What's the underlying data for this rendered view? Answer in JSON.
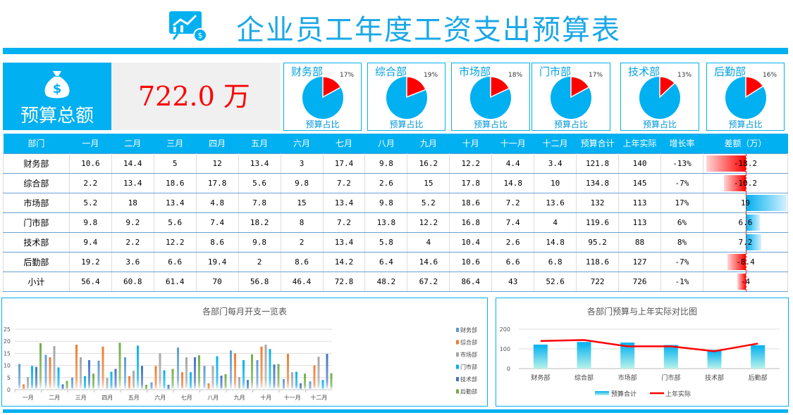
{
  "header": {
    "title": "企业员工年度工资支出预算表",
    "logo_icon": "chart-money-bag-icon"
  },
  "summary": {
    "label": "预算总额",
    "value": "722.0 万",
    "icon": "money-bag-icon"
  },
  "pies": [
    {
      "name": "财务部",
      "pct": "17%",
      "fraction": 0.17
    },
    {
      "name": "综合部",
      "pct": "19%",
      "fraction": 0.19
    },
    {
      "name": "市场部",
      "pct": "18%",
      "fraction": 0.18
    },
    {
      "name": "门市部",
      "pct": "17%",
      "fraction": 0.17
    },
    {
      "name": "技术部",
      "pct": "13%",
      "fraction": 0.13
    },
    {
      "name": "后勤部",
      "pct": "16%",
      "fraction": 0.16
    }
  ],
  "pie_sub": "预算占比",
  "colors": {
    "accent": "#00b0f0",
    "negative": "#ff0000",
    "budget_total": "#ff0000"
  },
  "table": {
    "headers": [
      "部门",
      "一月",
      "二月",
      "三月",
      "四月",
      "五月",
      "六月",
      "七月",
      "八月",
      "九月",
      "十月",
      "十一月",
      "十二月",
      "预算合计",
      "上年实际",
      "增长率",
      "差额（万）"
    ],
    "rows": [
      [
        "财务部",
        "10.6",
        "14.4",
        "5",
        "12",
        "13.4",
        "3",
        "17.4",
        "9.8",
        "16.2",
        "12.2",
        "4.4",
        "3.4",
        "121.8",
        "140",
        "-13%",
        "-18.2"
      ],
      [
        "综合部",
        "2.2",
        "13.4",
        "18.6",
        "17.8",
        "5.6",
        "9.8",
        "7.2",
        "2.6",
        "15",
        "17.8",
        "14.8",
        "10",
        "134.8",
        "145",
        "-7%",
        "-10.2"
      ],
      [
        "市场部",
        "5.2",
        "18",
        "13.4",
        "4.8",
        "7.8",
        "15",
        "13.4",
        "9.8",
        "5.2",
        "18.6",
        "7.2",
        "13.6",
        "132",
        "113",
        "17%",
        "19"
      ],
      [
        "门市部",
        "9.8",
        "9.2",
        "5.6",
        "7.4",
        "18.2",
        "8",
        "7.2",
        "13.8",
        "12.2",
        "16.8",
        "7.4",
        "4",
        "119.6",
        "113",
        "6%",
        "6.6"
      ],
      [
        "技术部",
        "9.4",
        "2.2",
        "12.2",
        "8.6",
        "9.8",
        "2",
        "13.4",
        "5.8",
        "4",
        "10.4",
        "2.6",
        "14.8",
        "95.2",
        "88",
        "8%",
        "7.2"
      ],
      [
        "后勤部",
        "19.2",
        "3.6",
        "6.6",
        "19.4",
        "2",
        "8.6",
        "14.2",
        "6.4",
        "14.6",
        "10.6",
        "6.6",
        "6.8",
        "118.6",
        "127",
        "-7%",
        "-8.4"
      ],
      [
        "小计",
        "56.4",
        "60.8",
        "61.4",
        "70",
        "56.8",
        "46.4",
        "72.8",
        "48.2",
        "67.2",
        "86.4",
        "43",
        "52.6",
        "722",
        "726",
        "-1%",
        "-4"
      ]
    ]
  },
  "chart_data": [
    {
      "type": "bar",
      "title": "各部门每月开支一览表",
      "categories": [
        "一月",
        "二月",
        "三月",
        "四月",
        "五月",
        "六月",
        "七月",
        "八月",
        "九月",
        "十月",
        "十一月",
        "十二月"
      ],
      "ylim": [
        0,
        25
      ],
      "yticks": [
        "0",
        "5",
        "10",
        "15",
        "20",
        "25"
      ],
      "grid": true,
      "legend": "right",
      "series": [
        {
          "name": "财务部",
          "color": "#5b9bd5",
          "values": [
            10.6,
            14.4,
            5,
            12,
            13.4,
            3,
            17.4,
            9.8,
            16.2,
            12.2,
            4.4,
            3.4
          ]
        },
        {
          "name": "综合部",
          "color": "#ed7d31",
          "values": [
            2.2,
            13.4,
            18.6,
            17.8,
            5.6,
            9.8,
            7.2,
            2.6,
            15,
            17.8,
            14.8,
            10
          ]
        },
        {
          "name": "市场部",
          "color": "#a5a5a5",
          "values": [
            5.2,
            18,
            13.4,
            4.8,
            7.8,
            15,
            13.4,
            9.8,
            5.2,
            18.6,
            7.2,
            13.6
          ]
        },
        {
          "name": "门市部",
          "color": "#00b0f0",
          "values": [
            9.8,
            9.2,
            5.6,
            7.4,
            18.2,
            8,
            7.2,
            13.8,
            12.2,
            16.8,
            7.4,
            4
          ]
        },
        {
          "name": "技术部",
          "color": "#4472c4",
          "values": [
            9.4,
            2.2,
            12.2,
            8.6,
            9.8,
            2,
            13.4,
            5.8,
            4,
            10.4,
            2.6,
            14.8
          ]
        },
        {
          "name": "后勤部",
          "color": "#70ad47",
          "values": [
            19.2,
            3.6,
            6.6,
            19.4,
            2,
            8.6,
            14.2,
            6.4,
            14.6,
            10.6,
            6.6,
            6.8
          ]
        }
      ]
    },
    {
      "type": "bar+line",
      "title": "各部门预算与上年实际对比图",
      "categories": [
        "财务部",
        "综合部",
        "市场部",
        "门市部",
        "技术部",
        "后勤部"
      ],
      "ylim": [
        0,
        200
      ],
      "yticks": [
        "0",
        "100",
        "200"
      ],
      "grid": true,
      "legend": "bottom",
      "series": [
        {
          "name": "预算合计",
          "type": "bar",
          "color": "#00b0f0",
          "values": [
            121.8,
            134.8,
            132,
            119.6,
            95.2,
            118.6
          ]
        },
        {
          "name": "上年实际",
          "type": "line",
          "color": "#ff0000",
          "values": [
            140,
            145,
            113,
            113,
            88,
            127
          ]
        }
      ]
    }
  ]
}
